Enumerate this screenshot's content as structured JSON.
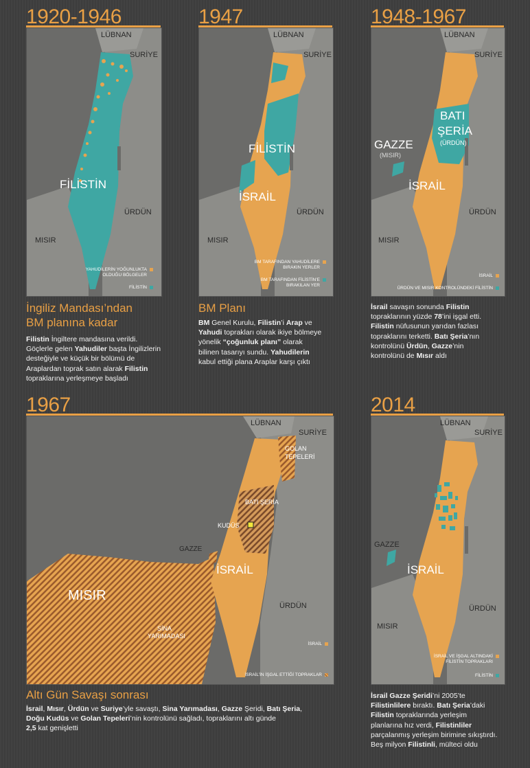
{
  "colors": {
    "orange": "#e6a450",
    "teal": "#3fa7a3",
    "land": "#8d8d89",
    "sea": "#6b6b69"
  },
  "panel1": {
    "year": "1920-1946",
    "lubnan": "LÜBNAN",
    "suriye": "SURİYE",
    "misir": "MISIR",
    "urdun": "ÜRDÜN",
    "filistin": "FİLİSTİN",
    "legend1_line1": "YAHUDİLERİN YOĞUNLUKTA",
    "legend1_line2": "OLDUĞU BÖLGELER",
    "legend2": "FİLİSTİN",
    "title_line1": "İngiliz Mandası’ndan",
    "title_line2": "BM planına kadar",
    "desc": [
      [
        {
          "t": "Filistin",
          "b": true
        },
        {
          "t": " İngiltere mandasına verildi.",
          "b": false
        }
      ],
      [
        {
          "t": "Göçlerle gelen ",
          "b": false
        },
        {
          "t": "Yahudiler",
          "b": true
        },
        {
          "t": " başta İngilizlerin",
          "b": false
        }
      ],
      [
        {
          "t": "desteğiyle ve küçük bir bölümü de",
          "b": false
        }
      ],
      [
        {
          "t": "Araplardan toprak satın alarak ",
          "b": false
        },
        {
          "t": "Filistin",
          "b": true
        }
      ],
      [
        {
          "t": "topraklarına yerleşmeye başladı",
          "b": false
        }
      ]
    ]
  },
  "panel2": {
    "year": "1947",
    "lubnan": "LÜBNAN",
    "suriye": "SURİYE",
    "misir": "MISIR",
    "urdun": "ÜRDÜN",
    "filistin": "FİLİSTİN",
    "israil": "İSRAİL",
    "legend1_line1": "BM TARAFINDAN YAHUDİLERE",
    "legend1_line2": "BIRAKIN YERLER",
    "legend2_line1": "BM TARAFINDAN FİLİSTİN’E",
    "legend2_line2": "BIRAKILAN YER",
    "title": "BM Planı",
    "desc": [
      [
        {
          "t": "BM",
          "b": true
        },
        {
          "t": " Genel Kurulu, ",
          "b": false
        },
        {
          "t": "Filistin",
          "b": true
        },
        {
          "t": "’i ",
          "b": false
        },
        {
          "t": "Arap",
          "b": true
        },
        {
          "t": " ve",
          "b": false
        }
      ],
      [
        {
          "t": "Yahudi",
          "b": true
        },
        {
          "t": " toprakları olarak ikiye bölmeye",
          "b": false
        }
      ],
      [
        {
          "t": "yönelik ",
          "b": false
        },
        {
          "t": "“çoğunluk planı”",
          "b": true
        },
        {
          "t": " olarak",
          "b": false
        }
      ],
      [
        {
          "t": "bilinen tasarıyı sundu. ",
          "b": false
        },
        {
          "t": "Yahudilerin",
          "b": true
        }
      ],
      [
        {
          "t": "kabul ettiği plana Araplar karşı çıktı",
          "b": false
        }
      ]
    ]
  },
  "panel3": {
    "year": "1948-1967",
    "lubnan": "LÜBNAN",
    "suriye": "SURİYE",
    "misir": "MISIR",
    "urdun": "ÜRDÜN",
    "bati": "BATI",
    "seria": "ŞERİA",
    "urdun_paren": "(ÜRDÜN)",
    "gazze": "GAZZE",
    "misir_paren": "(MISIR)",
    "israil": "İSRAİL",
    "legend1": "İSRAİL",
    "legend2": "ÜRDÜN VE MISIR KONTROLÜNDEKİ FİLİSTİN",
    "desc": [
      [
        {
          "t": "İsrail",
          "b": true
        },
        {
          "t": " savaşın sonunda ",
          "b": false
        },
        {
          "t": "Filistin",
          "b": true
        }
      ],
      [
        {
          "t": "topraklarının yüzde ",
          "b": false
        },
        {
          "t": "78",
          "b": true
        },
        {
          "t": "’ini işgal etti.",
          "b": false
        }
      ],
      [
        {
          "t": "Filistin",
          "b": true
        },
        {
          "t": " nüfusunun yarıdan fazlası",
          "b": false
        }
      ],
      [
        {
          "t": "topraklarını terketti. ",
          "b": false
        },
        {
          "t": "Batı Şeria",
          "b": true
        },
        {
          "t": "’nın",
          "b": false
        }
      ],
      [
        {
          "t": "kontrolünü ",
          "b": false
        },
        {
          "t": "Ürdün",
          "b": true
        },
        {
          "t": ", ",
          "b": false
        },
        {
          "t": "Gazze",
          "b": true
        },
        {
          "t": "’nin",
          "b": false
        }
      ],
      [
        {
          "t": "kontrolünü de ",
          "b": false
        },
        {
          "t": "Mısır",
          "b": true
        },
        {
          "t": " aldı",
          "b": false
        }
      ]
    ]
  },
  "panel4": {
    "year": "1967",
    "lubnan": "LÜBNAN",
    "suriye": "SURİYE",
    "golan1": "GOLAN",
    "golan2": "TEPELERİ",
    "bati": "BATI ŞERİA",
    "kudus": "KUDÜS",
    "gazze": "GAZZE",
    "israil": "İSRAİL",
    "misir": "MISIR",
    "sina1": "SİNA",
    "sina2": "YARIMADASI",
    "urdun": "ÜRDÜN",
    "legend1": "İSRAİL",
    "legend2": "İSRAİL’İN İŞGAL ETTİĞİ TOPRAKLAR",
    "title": "Altı Gün Savaşı sonrası",
    "desc": [
      [
        {
          "t": "İsrail",
          "b": true
        },
        {
          "t": ", ",
          "b": false
        },
        {
          "t": "Mısır",
          "b": true
        },
        {
          "t": ", ",
          "b": false
        },
        {
          "t": "Ürdün",
          "b": true
        },
        {
          "t": " ve ",
          "b": false
        },
        {
          "t": "Suriye",
          "b": true
        },
        {
          "t": "’yle savaştı, ",
          "b": false
        },
        {
          "t": "Sina Yarımadası",
          "b": true
        },
        {
          "t": ", ",
          "b": false
        },
        {
          "t": "Gazze",
          "b": true
        },
        {
          "t": " Şeridi, ",
          "b": false
        },
        {
          "t": "Batı Şeria",
          "b": true
        },
        {
          "t": ",",
          "b": false
        }
      ],
      [
        {
          "t": "Doğu Kudüs",
          "b": true
        },
        {
          "t": " ve ",
          "b": false
        },
        {
          "t": "Golan Tepeleri",
          "b": true
        },
        {
          "t": "’nin kontrolünü sağladı, topraklarını altı günde",
          "b": false
        }
      ],
      [
        {
          "t": "2,5",
          "b": true
        },
        {
          "t": " kat genişletti",
          "b": false
        }
      ]
    ]
  },
  "panel5": {
    "year": "2014",
    "lubnan": "LÜBNAN",
    "suriye": "SURİYE",
    "misir": "MISIR",
    "urdun": "ÜRDÜN",
    "gazze": "GAZZE",
    "israil": "İSRAİL",
    "legend1_line1": "İSRAİL VE İŞGAL ALTINDAKİ",
    "legend1_line2": "FİLİSTİN TOPRAKLARI",
    "legend2": "FİLİSTİN",
    "desc": [
      [
        {
          "t": "İsrail Gazze Şeridi",
          "b": true
        },
        {
          "t": "’ni 2005’te",
          "b": false
        }
      ],
      [
        {
          "t": "Filistinlilere",
          "b": true
        },
        {
          "t": " bıraktı. ",
          "b": false
        },
        {
          "t": "Batı Şeria",
          "b": true
        },
        {
          "t": "’daki",
          "b": false
        }
      ],
      [
        {
          "t": "Filistin",
          "b": true
        },
        {
          "t": " topraklarında yerleşim",
          "b": false
        }
      ],
      [
        {
          "t": "planlarına hız verdi, ",
          "b": false
        },
        {
          "t": "Filistinliler",
          "b": true
        }
      ],
      [
        {
          "t": "parçalanmış yerleşim birimine sıkıştırdı.",
          "b": false
        }
      ],
      [
        {
          "t": "Beş milyon ",
          "b": false
        },
        {
          "t": "Filistinli",
          "b": true
        },
        {
          "t": ", mülteci oldu",
          "b": false
        }
      ]
    ]
  }
}
